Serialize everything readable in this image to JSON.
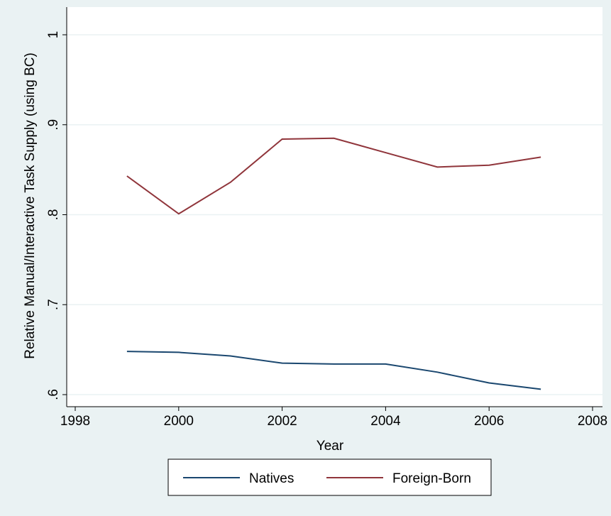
{
  "chart_data": {
    "type": "line",
    "x": [
      1999,
      2000,
      2001,
      2002,
      2003,
      2004,
      2005,
      2006,
      2007
    ],
    "series": [
      {
        "name": "Natives",
        "color": "#1a476f",
        "values": [
          0.648,
          0.647,
          0.643,
          0.635,
          0.634,
          0.634,
          0.625,
          0.613,
          0.606
        ]
      },
      {
        "name": "Foreign-Born",
        "color": "#90353b",
        "values": [
          0.843,
          0.801,
          0.836,
          0.884,
          0.885,
          0.869,
          0.853,
          0.855,
          0.864
        ]
      }
    ],
    "xlabel": "Year",
    "ylabel": "Relative Manual/Interactive Task Supply (using BC)",
    "xlim": [
      1998,
      2008
    ],
    "xticks": [
      1998,
      2000,
      2002,
      2004,
      2006,
      2008
    ],
    "ylim": [
      0.6,
      1
    ],
    "yticks": [
      {
        "value": 0.6,
        "label": ".6"
      },
      {
        "value": 0.7,
        "label": ".7"
      },
      {
        "value": 0.8,
        "label": ".8"
      },
      {
        "value": 0.9,
        "label": ".9"
      },
      1
    ],
    "grid": true,
    "legend": "bottom"
  }
}
